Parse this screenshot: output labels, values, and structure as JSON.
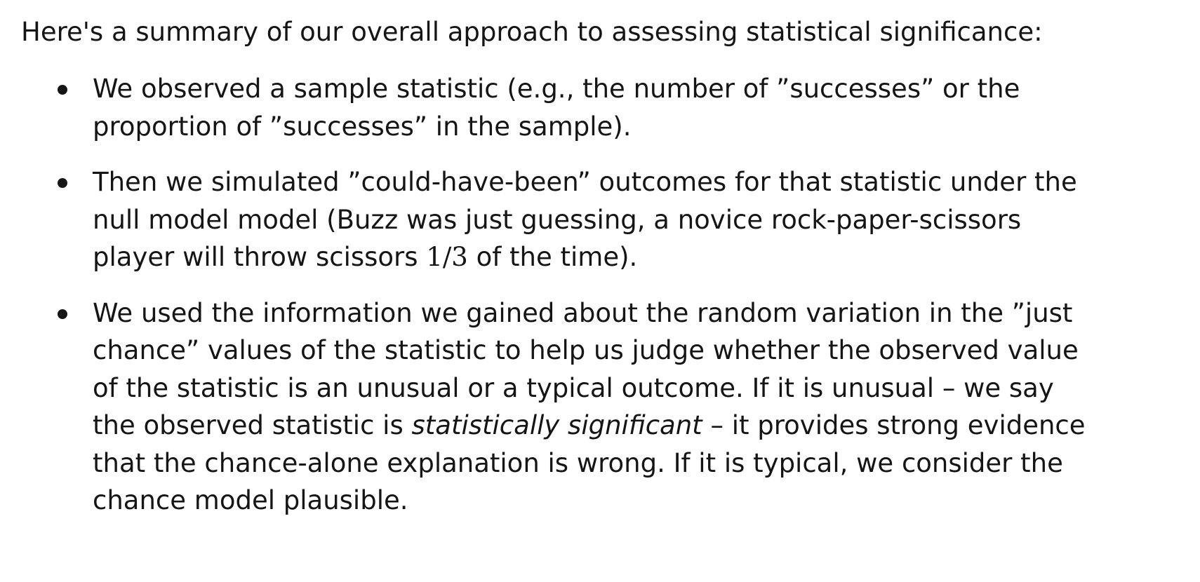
{
  "intro": "Here's a summary of our overall approach to assessing statistical significance:",
  "bullets": [
    {
      "lines": [
        "We observed a sample statistic (e.g., the number of ”successes” or the",
        "proportion of ”successes” in the sample)."
      ]
    },
    {
      "lines": [
        "Then we simulated ”could-have-been” outcomes for that statistic under the",
        "null model model (Buzz was just guessing, a novice rock-paper-scissors"
      ],
      "line3_before": "player will throw scissors ",
      "line3_math": "1/3",
      "line3_after": " of the time)."
    },
    {
      "lines": [
        "We used the information we gained about the random variation in the ”just",
        "chance” values of the statistic to help us judge whether the observed value",
        "of the statistic is an unusual or a typical outcome. If it is unusual – we say"
      ],
      "line4_before": "the observed statistic is ",
      "line4_em": "statistically significant",
      "line4_after": " – it provides strong evidence",
      "lines_after": [
        "that the chance-alone explanation is wrong. If it is typical, we consider the",
        "chance model plausible."
      ]
    }
  ]
}
